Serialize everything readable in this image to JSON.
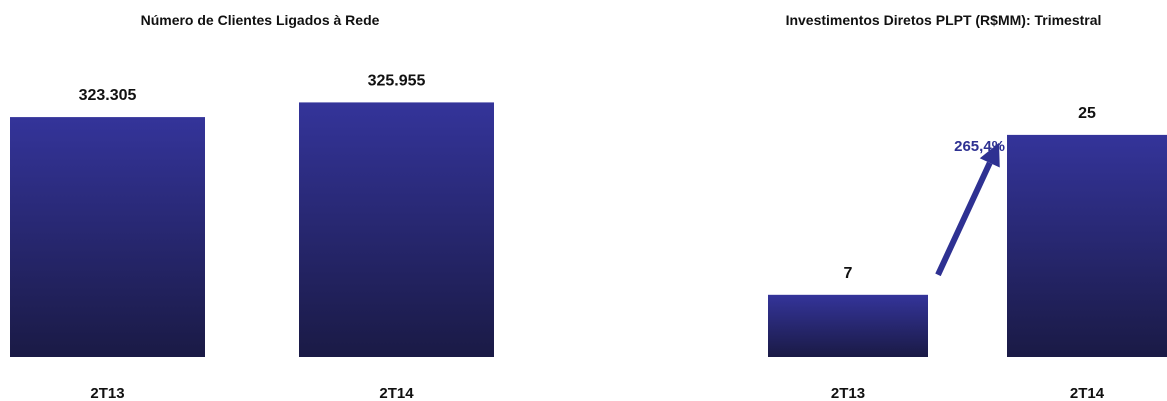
{
  "chart_data": [
    {
      "type": "bar",
      "title": "Número de Clientes Ligados à Rede",
      "categories": [
        "2T13",
        "2T14"
      ],
      "values": [
        323305,
        325955
      ],
      "value_labels": [
        "323.305",
        "325.955"
      ],
      "ylim": [
        280000,
        330000
      ],
      "grid": false,
      "legend": "none"
    },
    {
      "type": "bar",
      "title": "Investimentos Diretos PLPT (R$MM): Trimestral",
      "categories": [
        "2T13",
        "2T14"
      ],
      "values": [
        7,
        25
      ],
      "value_labels": [
        "7",
        "25"
      ],
      "ylim": [
        0,
        26
      ],
      "grid": false,
      "legend": "none",
      "annotation": {
        "text": "265,4%",
        "color": "#2E3192"
      }
    }
  ],
  "colors": {
    "bar_top": "#34349A",
    "bar_bottom": "#1A1A45",
    "annotation": "#2E3192"
  }
}
